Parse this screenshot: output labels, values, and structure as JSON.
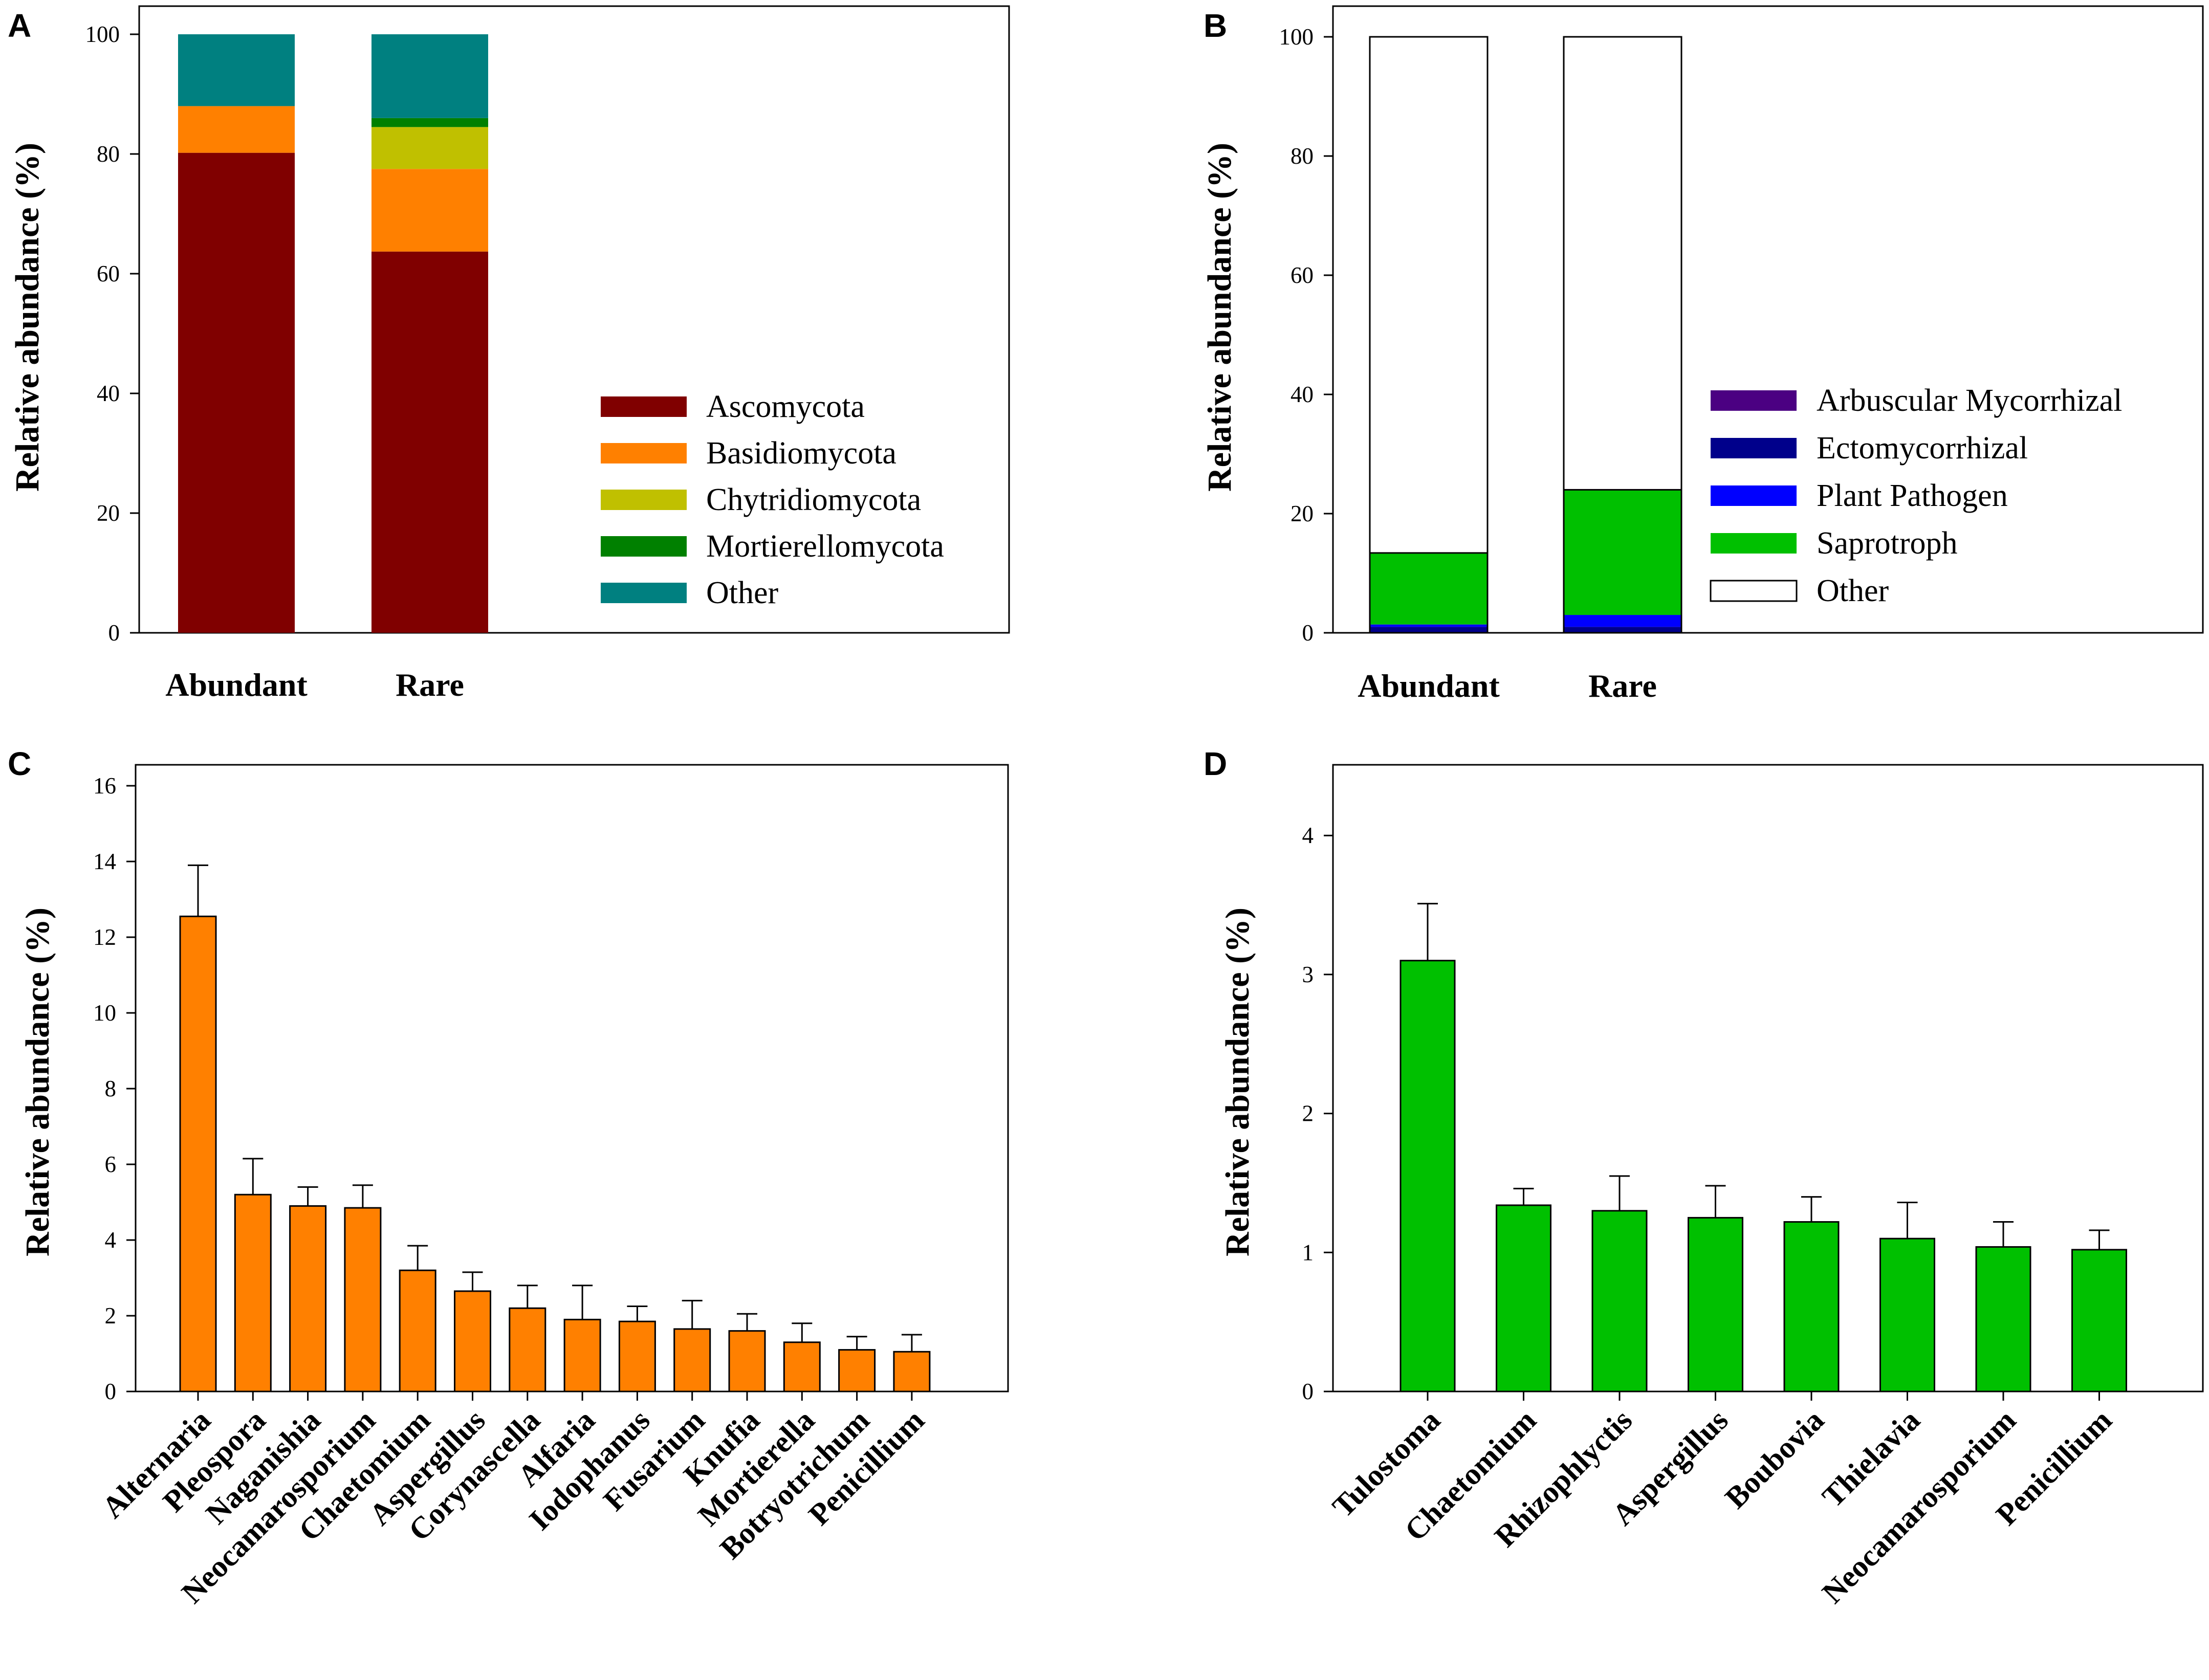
{
  "colors": {
    "Ascomycota": "#800000",
    "Basidiomycota": "#ff8000",
    "Chytridiomycota": "#c0c000",
    "Mortierellomycota": "#008000",
    "PhylumOther": "#008080",
    "Arbuscular Mycorrhizal": "#4b0082",
    "Ectomycorrhizal": "#00008b",
    "Plant Pathogen": "#0000ff",
    "Saprotroph": "#00c000",
    "GuildOther": "#ffffff",
    "orangeBar": "#ff8000",
    "greenBar": "#00c000"
  },
  "chart_data": [
    {
      "panel": "A",
      "type": "bar",
      "stacked": true,
      "ylabel": "Relative abundance (%)",
      "ylim": [
        0,
        100
      ],
      "yticks": [
        0,
        20,
        40,
        60,
        80,
        100
      ],
      "categories": [
        "Abundant",
        "Rare"
      ],
      "series": [
        {
          "name": "Ascomycota",
          "values": [
            80.2,
            63.7
          ]
        },
        {
          "name": "Basidiomycota",
          "values": [
            7.8,
            13.8
          ]
        },
        {
          "name": "Chytridiomycota",
          "values": [
            0,
            7.0
          ]
        },
        {
          "name": "Mortierellomycota",
          "values": [
            0,
            1.5
          ]
        },
        {
          "name": "Other",
          "values": [
            12.0,
            14.0
          ]
        }
      ],
      "legend": [
        "Ascomycota",
        "Basidiomycota",
        "Chytridiomycota",
        "Mortierellomycota",
        "Other"
      ],
      "legend_position": "bottom-right"
    },
    {
      "panel": "B",
      "type": "bar",
      "stacked": true,
      "ylabel": "Relative abundance (%)",
      "ylim": [
        0,
        100
      ],
      "yticks": [
        0,
        20,
        40,
        60,
        80,
        100
      ],
      "categories": [
        "Abundant",
        "Rare"
      ],
      "series": [
        {
          "name": "Arbuscular Mycorrhizal",
          "values": [
            0,
            0
          ]
        },
        {
          "name": "Ectomycorrhizal",
          "values": [
            1.0,
            1.0
          ]
        },
        {
          "name": "Plant Pathogen",
          "values": [
            0.4,
            2.0
          ]
        },
        {
          "name": "Saprotroph",
          "values": [
            12.0,
            21.0
          ]
        },
        {
          "name": "Other",
          "values": [
            86.6,
            76.0
          ]
        }
      ],
      "legend": [
        "Arbuscular Mycorrhizal",
        "Ectomycorrhizal",
        "Plant Pathogen",
        "Saprotroph",
        "Other"
      ],
      "legend_position": "bottom-right"
    },
    {
      "panel": "C",
      "type": "bar",
      "ylabel": "Relative abundance (%)",
      "ylim": [
        0,
        16
      ],
      "yticks": [
        0,
        2,
        4,
        6,
        8,
        10,
        12,
        14,
        16
      ],
      "categories": [
        "Alternaria",
        "Pleospora",
        "Naganishia",
        "Neocamarosporium",
        "Chaetomium",
        "Aspergillus",
        "Corynascella",
        "Alfaria",
        "Iodophanus",
        "Fusarium",
        "Knufia",
        "Mortierella",
        "Botryotrichum",
        "Penicillium"
      ],
      "values": [
        12.55,
        5.2,
        4.9,
        4.85,
        3.2,
        2.65,
        2.2,
        1.9,
        1.85,
        1.65,
        1.6,
        1.3,
        1.1,
        1.05
      ],
      "errors": [
        1.35,
        0.95,
        0.5,
        0.6,
        0.65,
        0.5,
        0.6,
        0.9,
        0.4,
        0.75,
        0.45,
        0.5,
        0.35,
        0.45
      ]
    },
    {
      "panel": "D",
      "type": "bar",
      "ylabel": "Relative abundance (%)",
      "ylim": [
        0,
        4.5
      ],
      "yticks": [
        0,
        1,
        2,
        3,
        4
      ],
      "categories": [
        "Tulostoma",
        "Chaetomium",
        "Rhizophlyctis",
        "Aspergillus",
        "Boubovia",
        "Thielavia",
        "Neocamarosporium",
        "Penicillium"
      ],
      "values": [
        3.1,
        1.34,
        1.3,
        1.25,
        1.22,
        1.1,
        1.04,
        1.02
      ],
      "errors": [
        0.41,
        0.12,
        0.25,
        0.23,
        0.18,
        0.26,
        0.18,
        0.14
      ]
    }
  ]
}
